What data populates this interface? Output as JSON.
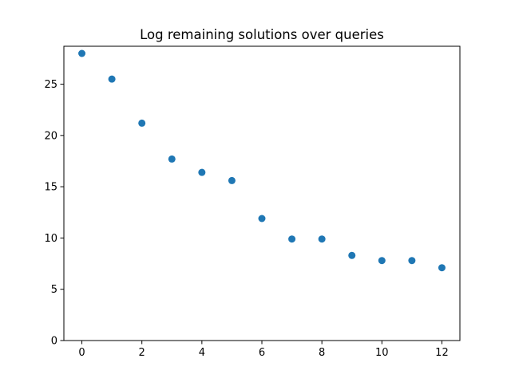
{
  "chart_data": {
    "type": "scatter",
    "title": "Log remaining solutions over queries",
    "xlabel": "",
    "ylabel": "",
    "xlim": [
      -0.6,
      12.6
    ],
    "ylim": [
      0,
      28.7
    ],
    "x_ticks": [
      0,
      2,
      4,
      6,
      8,
      10,
      12
    ],
    "y_ticks": [
      0,
      5,
      10,
      15,
      20,
      25
    ],
    "grid": false,
    "legend": "none",
    "marker_color": "#1f77b4",
    "series": [
      {
        "x": [
          0,
          1,
          2,
          3,
          4,
          5,
          6,
          7,
          8,
          9,
          10,
          11,
          12
        ],
        "y": [
          28.0,
          25.5,
          21.2,
          17.7,
          16.4,
          15.6,
          11.9,
          9.9,
          9.9,
          8.3,
          7.8,
          7.8,
          7.1
        ]
      }
    ]
  }
}
